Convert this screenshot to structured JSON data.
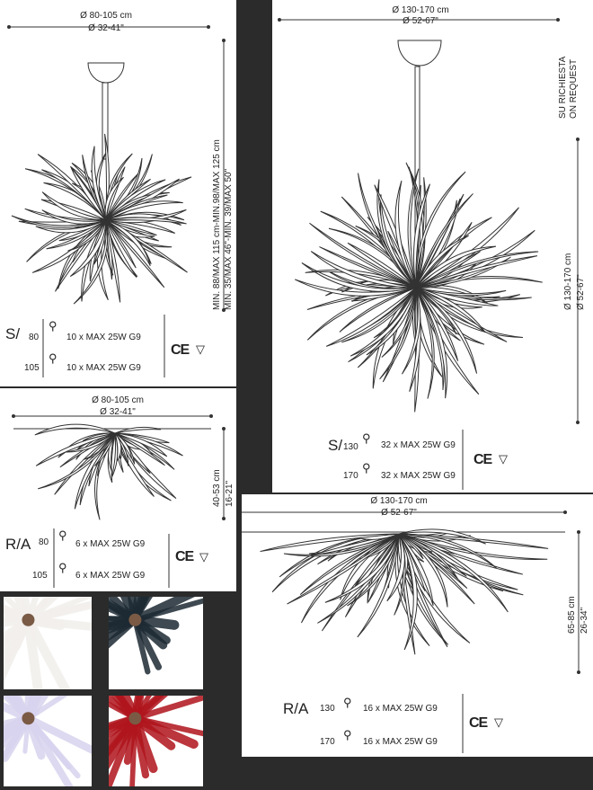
{
  "sheet": {
    "s_small": {
      "dia_cm": "Ø 80-105 cm",
      "dia_in": "Ø 32-41\"",
      "height": "MIN. 88/MAX 115 cm-MIN.98/MAX 125 cm",
      "height_in": "MIN. 35/MAX 46\"-MIN. 39/MAX 50\"",
      "code": "S/",
      "rows": [
        {
          "size": "80",
          "spec": "10 x MAX 25W G9"
        },
        {
          "size": "105",
          "spec": "10 x MAX 25W G9"
        }
      ],
      "cert": "CE"
    },
    "s_large": {
      "dia_cm": "Ø 130-170 cm",
      "dia_in": "Ø 52-67\"",
      "request_it": "SU RICHIESTA",
      "request_en": "ON REQUEST",
      "height_cm": "Ø 130-170 cm",
      "height_in": "Ø 52-67\"",
      "code": "S/",
      "rows": [
        {
          "size": "130",
          "spec": "32 x MAX 25W G9"
        },
        {
          "size": "170",
          "spec": "32 x MAX 25W G9"
        }
      ],
      "cert": "CE"
    },
    "ra_small": {
      "dia_cm": "Ø 80-105 cm",
      "dia_in": "Ø 32-41\"",
      "height_cm": "40-53 cm",
      "height_in": "16-21\"",
      "code": "R/A",
      "rows": [
        {
          "size": "80",
          "spec": "6 x MAX 25W G9"
        },
        {
          "size": "105",
          "spec": "6 x MAX 25W G9"
        }
      ],
      "cert": "CE"
    },
    "ra_large": {
      "dia_cm": "Ø 130-170 cm",
      "dia_in": "Ø 52-67\"",
      "height_cm": "65-85 cm",
      "height_in": "26-34\"",
      "code": "R/A",
      "rows": [
        {
          "size": "130",
          "spec": "16 x MAX 25W G9"
        },
        {
          "size": "170",
          "spec": "16 x MAX 25W G9"
        }
      ],
      "cert": "CE"
    },
    "swatches": [
      {
        "name": "white",
        "color": "#f2efec"
      },
      {
        "name": "black",
        "color": "#1d2a33"
      },
      {
        "name": "lavender",
        "color": "#d8d3ee"
      },
      {
        "name": "red",
        "color": "#b0141c"
      }
    ]
  }
}
